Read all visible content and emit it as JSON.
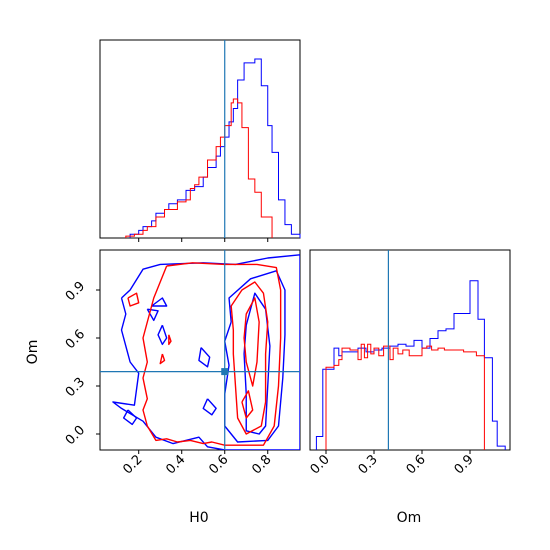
{
  "chart_data": {
    "type": "corner",
    "parameters": [
      "H0",
      "Om"
    ],
    "truth": {
      "H0": 0.6,
      "Om": 0.39
    },
    "colors": {
      "series_a": "#0000ff",
      "series_b": "#ff0000",
      "truth": "#1f77b4",
      "frame": "#000000"
    },
    "panels": [
      {
        "id": "hist-H0",
        "type": "step-histogram",
        "xlim": [
          0.02,
          0.95
        ],
        "xticks": [
          0.2,
          0.4,
          0.6,
          0.8
        ],
        "ylim": [
          0,
          1.04
        ],
        "series": [
          {
            "color": "#0000ff",
            "edges": [
              0.16,
              0.2,
              0.22,
              0.26,
              0.28,
              0.32,
              0.34,
              0.38,
              0.42,
              0.46,
              0.5,
              0.52,
              0.56,
              0.58,
              0.6,
              0.62,
              0.64,
              0.66,
              0.69,
              0.74,
              0.77,
              0.8,
              0.82,
              0.85,
              0.88,
              0.91,
              0.95
            ],
            "heights": [
              0.02,
              0.04,
              0.06,
              0.09,
              0.13,
              0.15,
              0.18,
              0.2,
              0.25,
              0.27,
              0.32,
              0.37,
              0.43,
              0.48,
              0.53,
              0.61,
              0.68,
              0.83,
              0.92,
              0.94,
              0.8,
              0.59,
              0.45,
              0.2,
              0.07,
              0.02
            ]
          },
          {
            "color": "#ff0000",
            "edges": [
              0.14,
              0.18,
              0.22,
              0.24,
              0.28,
              0.32,
              0.38,
              0.42,
              0.44,
              0.46,
              0.48,
              0.52,
              0.56,
              0.58,
              0.6,
              0.63,
              0.64,
              0.66,
              0.68,
              0.71,
              0.74,
              0.77,
              0.82
            ],
            "heights": [
              0.01,
              0.02,
              0.04,
              0.06,
              0.11,
              0.15,
              0.19,
              0.2,
              0.26,
              0.28,
              0.32,
              0.41,
              0.48,
              0.53,
              0.59,
              0.71,
              0.73,
              0.71,
              0.58,
              0.31,
              0.24,
              0.11
            ]
          }
        ]
      },
      {
        "id": "contour-H0-Om",
        "type": "contour",
        "xlim": [
          0.02,
          0.95
        ],
        "ylim": [
          -0.1,
          1.15
        ],
        "xticks": [
          0.2,
          0.4,
          0.6,
          0.8
        ],
        "yticks": [
          0.0,
          0.3,
          0.6,
          0.9
        ],
        "series": [
          {
            "color": "#0000ff",
            "contours": [
              [
                [
                  0.12,
                  0.85
                ],
                [
                  0.16,
                  0.9
                ],
                [
                  0.22,
                  1.03
                ],
                [
                  0.3,
                  1.06
                ],
                [
                  0.5,
                  1.07
                ],
                [
                  0.65,
                  1.06
                ],
                [
                  0.8,
                  1.1
                ],
                [
                  0.95,
                  1.12
                ],
                [
                  0.95,
                  -0.1
                ],
                [
                  0.6,
                  -0.1
                ],
                [
                  0.52,
                  -0.08
                ],
                [
                  0.48,
                  -0.02
                ],
                [
                  0.36,
                  -0.06
                ],
                [
                  0.28,
                  -0.02
                ],
                [
                  0.22,
                  0.08
                ],
                [
                  0.12,
                  0.16
                ],
                [
                  0.08,
                  0.2
                ],
                [
                  0.18,
                  0.18
                ],
                [
                  0.2,
                  0.38
                ],
                [
                  0.16,
                  0.45
                ],
                [
                  0.12,
                  0.65
                ],
                [
                  0.14,
                  0.75
                ],
                [
                  0.12,
                  0.85
                ]
              ],
              [
                [
                  0.63,
                  0.7
                ],
                [
                  0.62,
                  0.85
                ],
                [
                  0.72,
                  0.97
                ],
                [
                  0.84,
                  1.02
                ],
                [
                  0.88,
                  0.9
                ],
                [
                  0.88,
                  0.62
                ],
                [
                  0.87,
                  0.35
                ],
                [
                  0.85,
                  0.05
                ],
                [
                  0.8,
                  -0.04
                ],
                [
                  0.66,
                  -0.05
                ],
                [
                  0.6,
                  0.05
                ],
                [
                  0.6,
                  0.25
                ],
                [
                  0.62,
                  0.43
                ],
                [
                  0.6,
                  0.58
                ],
                [
                  0.63,
                  0.7
                ]
              ],
              [
                [
                  0.69,
                  0.5
                ],
                [
                  0.7,
                  0.68
                ],
                [
                  0.72,
                  0.78
                ],
                [
                  0.74,
                  0.88
                ],
                [
                  0.79,
                  0.78
                ],
                [
                  0.81,
                  0.55
                ],
                [
                  0.8,
                  0.3
                ],
                [
                  0.79,
                  0.05
                ],
                [
                  0.76,
                  0.0
                ],
                [
                  0.7,
                  0.02
                ],
                [
                  0.7,
                  0.25
                ],
                [
                  0.69,
                  0.5
                ]
              ],
              [
                [
                  0.24,
                  0.78
                ],
                [
                  0.29,
                  0.77
                ],
                [
                  0.27,
                  0.71
                ],
                [
                  0.24,
                  0.78
                ]
              ],
              [
                [
                  0.26,
                  0.8
                ],
                [
                  0.31,
                  0.85
                ],
                [
                  0.33,
                  0.8
                ],
                [
                  0.29,
                  0.8
                ],
                [
                  0.26,
                  0.8
                ]
              ],
              [
                [
                  0.31,
                  0.68
                ],
                [
                  0.33,
                  0.6
                ],
                [
                  0.31,
                  0.56
                ],
                [
                  0.29,
                  0.62
                ],
                [
                  0.31,
                  0.68
                ]
              ],
              [
                [
                  0.49,
                  0.54
                ],
                [
                  0.53,
                  0.48
                ],
                [
                  0.52,
                  0.42
                ],
                [
                  0.48,
                  0.46
                ],
                [
                  0.49,
                  0.54
                ]
              ],
              [
                [
                  0.52,
                  0.22
                ],
                [
                  0.56,
                  0.16
                ],
                [
                  0.54,
                  0.12
                ],
                [
                  0.5,
                  0.16
                ],
                [
                  0.52,
                  0.22
                ]
              ],
              [
                [
                  0.15,
                  0.15
                ],
                [
                  0.19,
                  0.1
                ],
                [
                  0.17,
                  0.06
                ],
                [
                  0.13,
                  0.1
                ],
                [
                  0.15,
                  0.15
                ]
              ]
            ]
          },
          {
            "color": "#ff0000",
            "contours": [
              [
                [
                  0.33,
                  1.05
                ],
                [
                  0.45,
                  1.07
                ],
                [
                  0.6,
                  1.06
                ],
                [
                  0.75,
                  1.06
                ],
                [
                  0.84,
                  1.04
                ],
                [
                  0.86,
                  0.9
                ],
                [
                  0.86,
                  0.6
                ],
                [
                  0.85,
                  0.3
                ],
                [
                  0.83,
                  0.05
                ],
                [
                  0.78,
                  -0.07
                ],
                [
                  0.6,
                  -0.07
                ],
                [
                  0.54,
                  -0.05
                ],
                [
                  0.5,
                  -0.06
                ],
                [
                  0.44,
                  -0.04
                ],
                [
                  0.38,
                  -0.05
                ],
                [
                  0.33,
                  -0.03
                ],
                [
                  0.28,
                  -0.04
                ],
                [
                  0.24,
                  0.05
                ],
                [
                  0.22,
                  0.15
                ],
                [
                  0.24,
                  0.22
                ],
                [
                  0.22,
                  0.35
                ],
                [
                  0.24,
                  0.45
                ],
                [
                  0.22,
                  0.6
                ],
                [
                  0.25,
                  0.75
                ],
                [
                  0.27,
                  0.85
                ],
                [
                  0.3,
                  0.95
                ],
                [
                  0.33,
                  1.05
                ]
              ],
              [
                [
                  0.64,
                  0.65
                ],
                [
                  0.63,
                  0.8
                ],
                [
                  0.68,
                  0.9
                ],
                [
                  0.74,
                  0.95
                ],
                [
                  0.78,
                  0.88
                ],
                [
                  0.8,
                  0.7
                ],
                [
                  0.79,
                  0.5
                ],
                [
                  0.79,
                  0.2
                ],
                [
                  0.77,
                  0.05
                ],
                [
                  0.7,
                  0.0
                ],
                [
                  0.66,
                  0.1
                ],
                [
                  0.65,
                  0.3
                ],
                [
                  0.64,
                  0.5
                ],
                [
                  0.64,
                  0.65
                ]
              ],
              [
                [
                  0.69,
                  0.6
                ],
                [
                  0.7,
                  0.75
                ],
                [
                  0.74,
                  0.85
                ],
                [
                  0.76,
                  0.7
                ],
                [
                  0.75,
                  0.45
                ],
                [
                  0.73,
                  0.3
                ],
                [
                  0.7,
                  0.45
                ],
                [
                  0.69,
                  0.6
                ]
              ],
              [
                [
                  0.68,
                  0.2
                ],
                [
                  0.71,
                  0.27
                ],
                [
                  0.73,
                  0.15
                ],
                [
                  0.7,
                  0.1
                ],
                [
                  0.68,
                  0.2
                ]
              ],
              [
                [
                  0.15,
                  0.85
                ],
                [
                  0.19,
                  0.88
                ],
                [
                  0.2,
                  0.82
                ],
                [
                  0.16,
                  0.8
                ],
                [
                  0.15,
                  0.85
                ]
              ],
              [
                [
                  0.34,
                  0.62
                ],
                [
                  0.35,
                  0.58
                ],
                [
                  0.34,
                  0.56
                ],
                [
                  0.34,
                  0.62
                ]
              ],
              [
                [
                  0.31,
                  0.5
                ],
                [
                  0.32,
                  0.46
                ],
                [
                  0.3,
                  0.44
                ],
                [
                  0.31,
                  0.5
                ]
              ]
            ]
          }
        ]
      },
      {
        "id": "hist-Om",
        "type": "step-histogram",
        "xlim": [
          -0.1,
          1.15
        ],
        "xticks": [
          0.0,
          0.3,
          0.6,
          0.9
        ],
        "ylim": [
          0,
          1.04
        ],
        "series": [
          {
            "color": "#0000ff",
            "edges": [
              -0.06,
              -0.02,
              0.05,
              0.08,
              0.1,
              0.15,
              0.2,
              0.25,
              0.3,
              0.35,
              0.4,
              0.45,
              0.5,
              0.55,
              0.6,
              0.65,
              0.7,
              0.75,
              0.8,
              0.85,
              0.9,
              0.95,
              0.99,
              1.04,
              1.07,
              1.12
            ],
            "heights": [
              0.07,
              0.42,
              0.53,
              0.49,
              0.51,
              0.51,
              0.53,
              0.51,
              0.52,
              0.53,
              0.54,
              0.55,
              0.54,
              0.57,
              0.53,
              0.58,
              0.62,
              0.63,
              0.71,
              0.71,
              0.88,
              0.68,
              0.48,
              0.15,
              0.02
            ]
          },
          {
            "color": "#ff0000",
            "edges": [
              0.0,
              0.05,
              0.08,
              0.1,
              0.15,
              0.2,
              0.22,
              0.24,
              0.26,
              0.28,
              0.3,
              0.33,
              0.36,
              0.4,
              0.42,
              0.45,
              0.48,
              0.52,
              0.56,
              0.6,
              0.63,
              0.66,
              0.7,
              0.74,
              0.78,
              0.82,
              0.86,
              0.9,
              0.94,
              0.99
            ],
            "heights": [
              0.43,
              0.44,
              0.47,
              0.53,
              0.52,
              0.47,
              0.55,
              0.48,
              0.55,
              0.5,
              0.53,
              0.49,
              0.54,
              0.47,
              0.53,
              0.5,
              0.52,
              0.49,
              0.49,
              0.53,
              0.54,
              0.52,
              0.53,
              0.52,
              0.52,
              0.52,
              0.51,
              0.51,
              0.49
            ]
          }
        ]
      }
    ]
  }
}
